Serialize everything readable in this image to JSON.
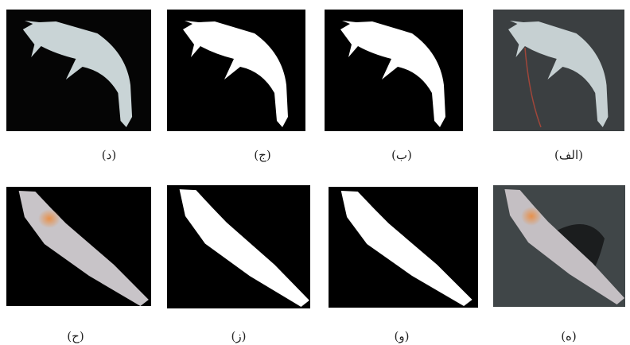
{
  "panels": [
    {
      "label": "(د)"
    },
    {
      "label": "(ج)"
    },
    {
      "label": "(ب)"
    },
    {
      "label": "(الف)"
    },
    {
      "label": "(ح)"
    },
    {
      "label": "(ز)"
    },
    {
      "label": "(و)"
    },
    {
      "label": "(ه)"
    }
  ]
}
